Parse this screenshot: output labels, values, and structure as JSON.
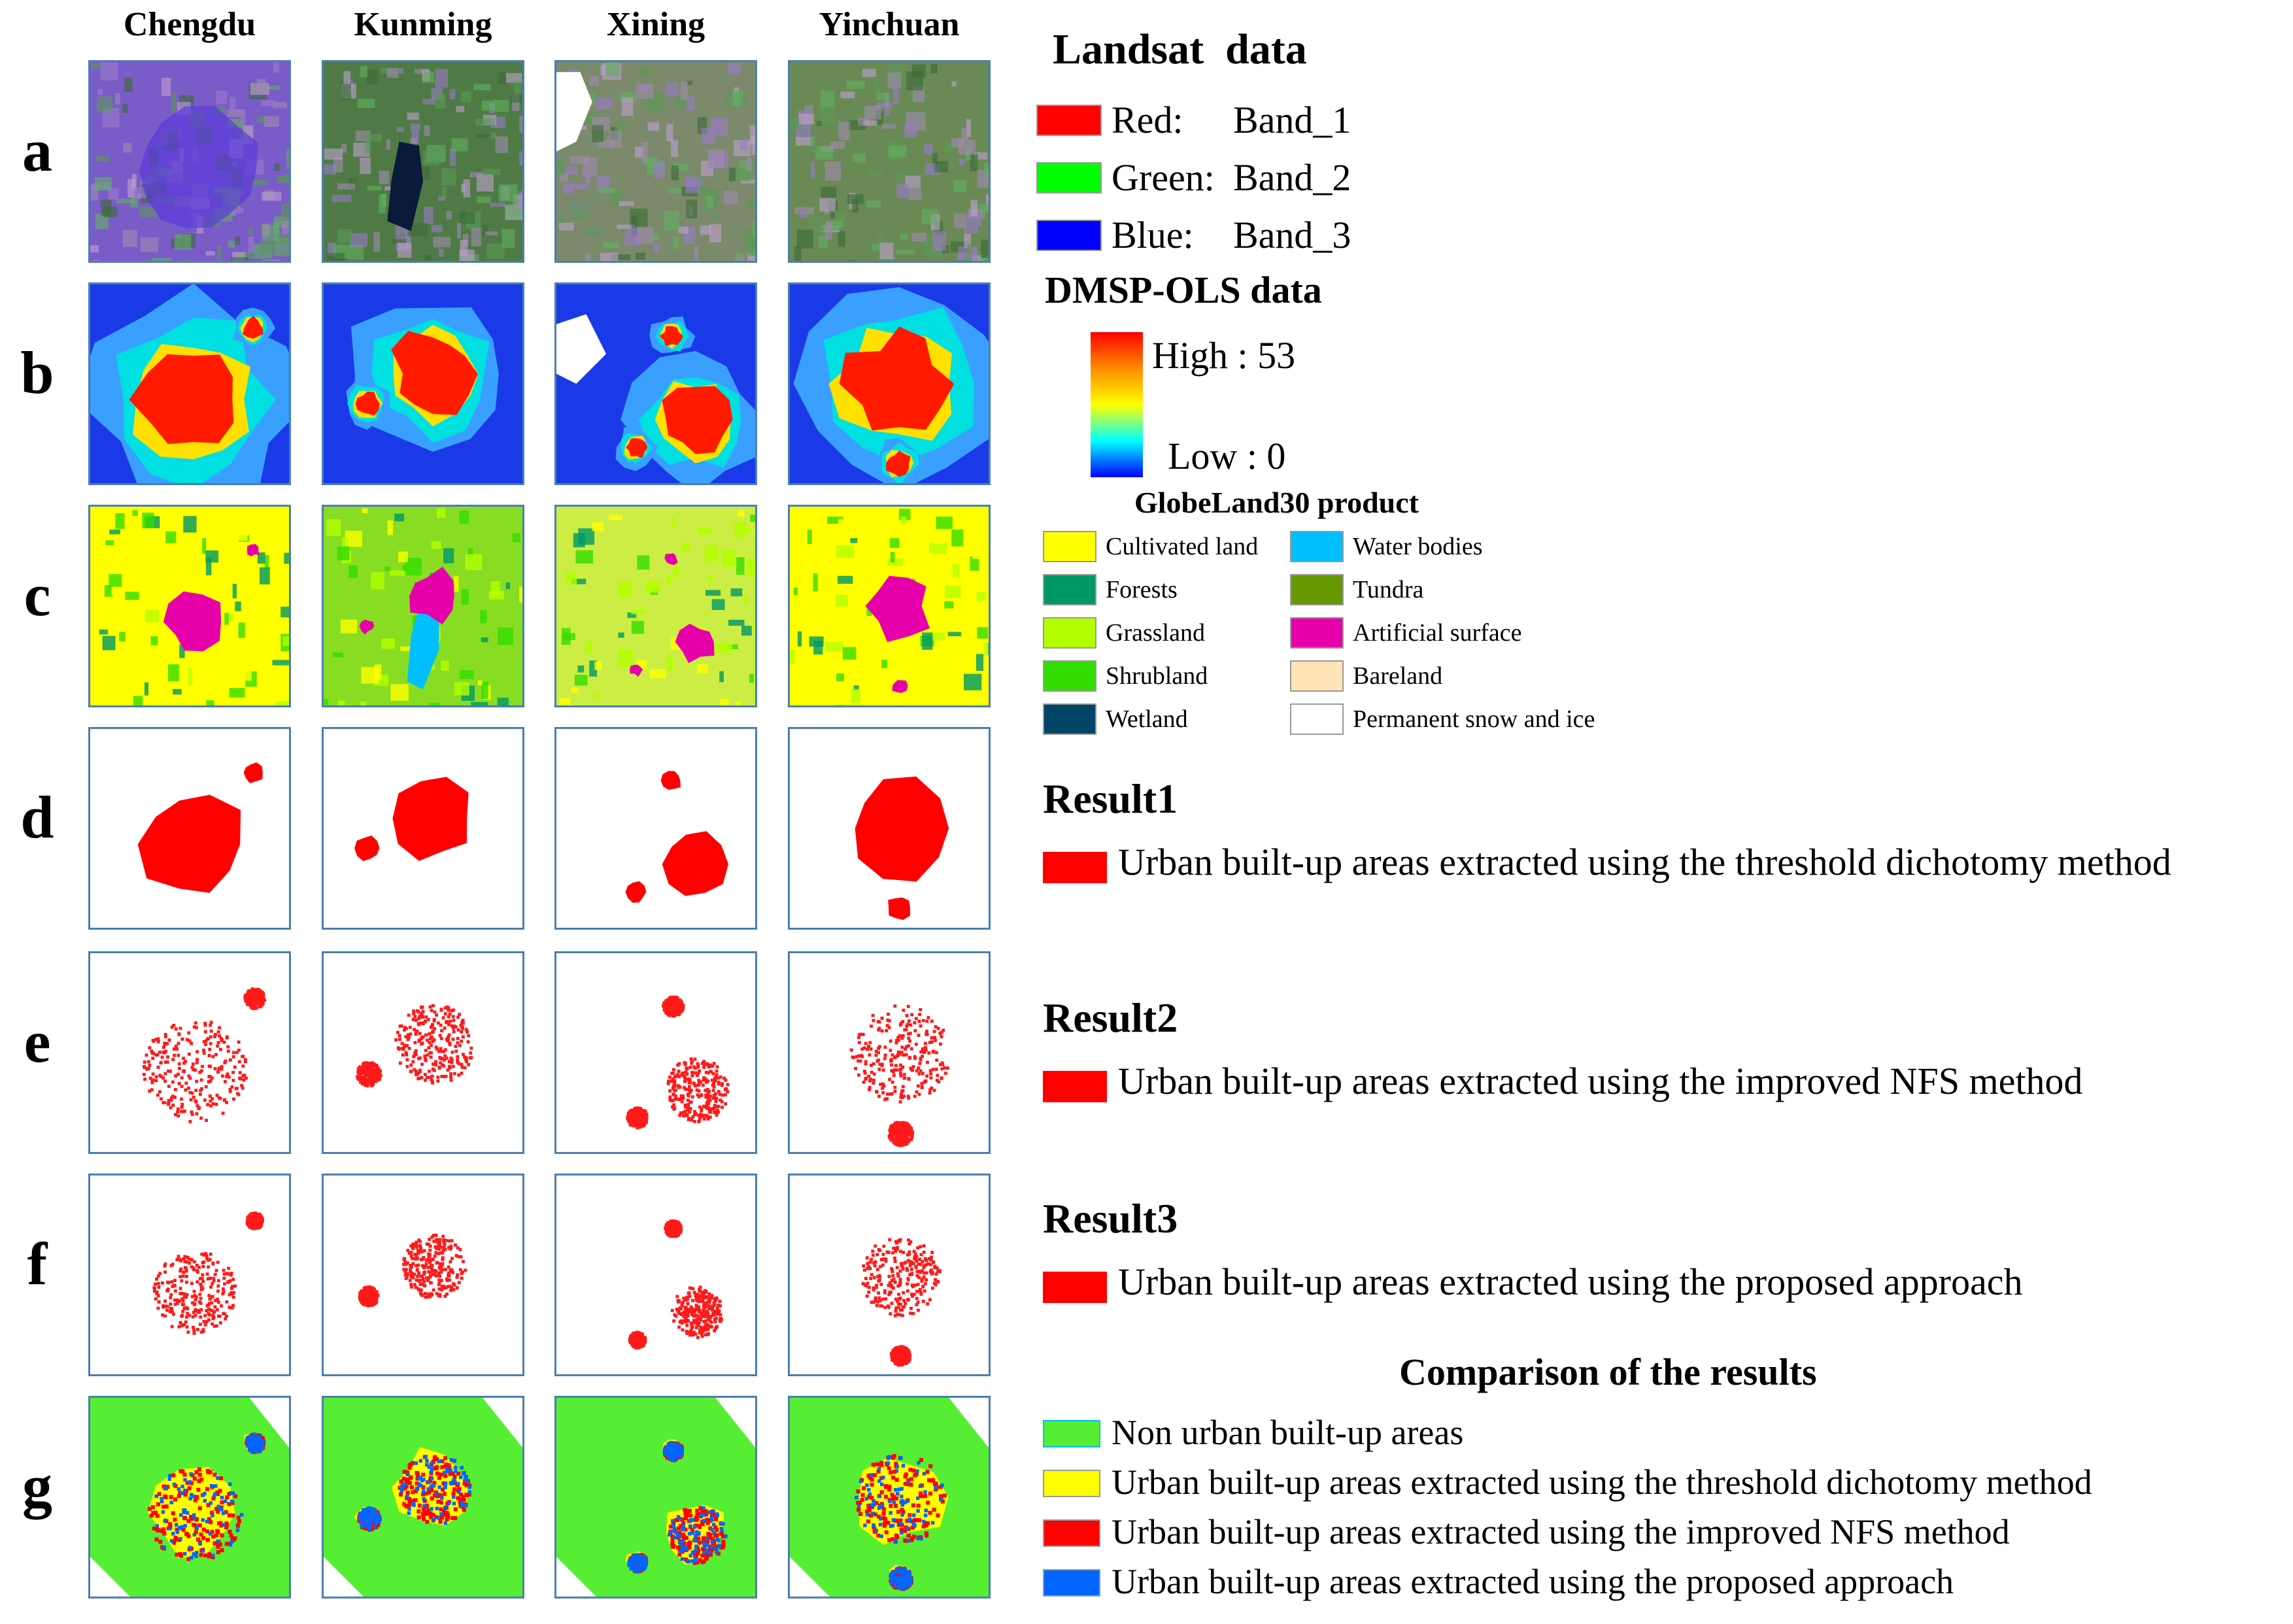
{
  "cities": [
    "Chengdu",
    "Kunming",
    "Xining",
    "Yinchuan"
  ],
  "row_labels": [
    "a",
    "b",
    "c",
    "d",
    "e",
    "f",
    "g"
  ],
  "landsat": {
    "title": "Landsat  data",
    "bands": [
      {
        "channel": "Red:",
        "band": "Band_1",
        "color": "#ff0000"
      },
      {
        "channel": "Green:",
        "band": "Band_2",
        "color": "#00ff00"
      },
      {
        "channel": "Blue:",
        "band": "Band_3",
        "color": "#0000ff"
      }
    ]
  },
  "dmsp": {
    "title": "DMSP-OLS data",
    "high_label": "High : 53",
    "low_label": "Low : 0",
    "ramp_colors": [
      "#ff0000",
      "#ff8c00",
      "#ffff00",
      "#00ffff",
      "#0000ff"
    ]
  },
  "globeland": {
    "title": "GlobeLand30 product",
    "classes": [
      {
        "label": "Cultivated land",
        "color": "#ffff00"
      },
      {
        "label": "Forests",
        "color": "#009966"
      },
      {
        "label": "Grassland",
        "color": "#b3ff00"
      },
      {
        "label": "Shrubland",
        "color": "#33dd00"
      },
      {
        "label": "Wetland",
        "color": "#004466"
      },
      {
        "label": "Water bodies",
        "color": "#00bfff"
      },
      {
        "label": "Tundra",
        "color": "#669900"
      },
      {
        "label": "Artificial surface",
        "color": "#e600aa"
      },
      {
        "label": "Bareland",
        "color": "#ffe4b5"
      },
      {
        "label": "Permanent snow and ice",
        "color": "#ffffff"
      }
    ]
  },
  "results": [
    {
      "title": "Result1",
      "desc": "Urban built-up areas extracted using the threshold dichotomy method",
      "color": "#ff0000"
    },
    {
      "title": "Result2",
      "desc": "Urban built-up areas extracted using the improved NFS method",
      "color": "#ff0000"
    },
    {
      "title": "Result3",
      "desc": "Urban built-up areas extracted using the proposed approach",
      "color": "#ff0000"
    }
  ],
  "comparison": {
    "title": "Comparison of the results",
    "items": [
      {
        "label": "Non urban built-up areas",
        "color": "#55ee33"
      },
      {
        "label": "Urban built-up areas extracted using the threshold dichotomy method",
        "color": "#ffff00"
      },
      {
        "label": "Urban built-up areas extracted using the improved NFS method",
        "color": "#ff0000"
      },
      {
        "label": "Urban built-up areas extracted using the proposed approach",
        "color": "#0066ff"
      }
    ]
  }
}
